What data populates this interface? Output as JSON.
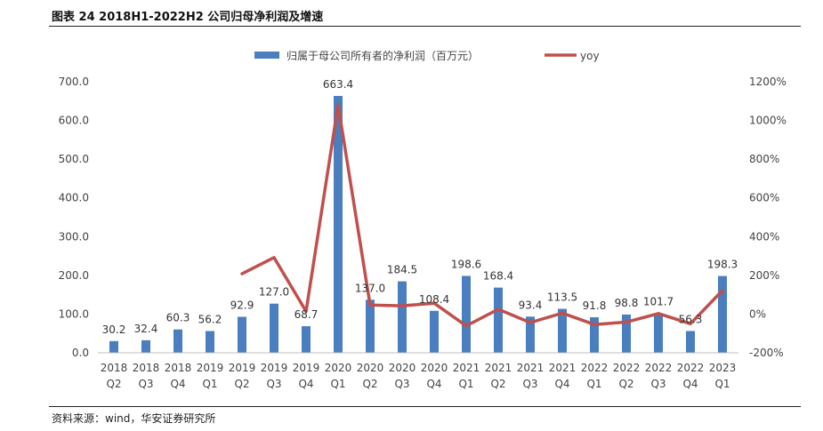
{
  "figure": {
    "title": "图表 24 2018H1-2022H2 公司归母净利润及增速",
    "source": "资料来源：wind，华安证券研究所"
  },
  "chart_data": {
    "type": "bar+line",
    "title": "图表 24 2018H1-2022H2 公司归母净利润及增速",
    "categories": [
      [
        "2018",
        "Q2"
      ],
      [
        "2018",
        "Q3"
      ],
      [
        "2018",
        "Q4"
      ],
      [
        "2019",
        "Q1"
      ],
      [
        "2019",
        "Q2"
      ],
      [
        "2019",
        "Q3"
      ],
      [
        "2019",
        "Q4"
      ],
      [
        "2020",
        "Q1"
      ],
      [
        "2020",
        "Q2"
      ],
      [
        "2020",
        "Q3"
      ],
      [
        "2020",
        "Q4"
      ],
      [
        "2021",
        "Q1"
      ],
      [
        "2021",
        "Q2"
      ],
      [
        "2021",
        "Q3"
      ],
      [
        "2021",
        "Q4"
      ],
      [
        "2022",
        "Q1"
      ],
      [
        "2022",
        "Q2"
      ],
      [
        "2022",
        "Q3"
      ],
      [
        "2022",
        "Q4"
      ],
      [
        "2023",
        "Q1"
      ]
    ],
    "series": [
      {
        "name": "归属于母公司所有者的净利润（百万元）",
        "type": "bar",
        "axis": "left",
        "color": "#4a7ebf",
        "values": [
          30.2,
          32.4,
          60.3,
          56.2,
          92.9,
          127.0,
          68.7,
          663.4,
          137.0,
          184.5,
          108.4,
          198.6,
          168.4,
          93.4,
          113.5,
          91.8,
          98.8,
          101.7,
          56.3,
          198.3
        ],
        "labels": [
          "30.2",
          "32.4",
          "60.3",
          "56.2",
          "92.9",
          "127.0",
          "68.7",
          "663.4",
          "137.0",
          "184.5",
          "108.4",
          "198.6",
          "168.4",
          "93.4",
          "113.5",
          "91.8",
          "98.8",
          "101.7",
          "56.3",
          "198.3"
        ]
      },
      {
        "name": "yoy",
        "type": "line",
        "axis": "right",
        "color": "#c0504d",
        "values": [
          null,
          null,
          null,
          null,
          208,
          292,
          14,
          1080,
          47,
          43,
          56,
          -61,
          25,
          -44,
          5,
          -54,
          -41,
          3,
          -50,
          122
        ]
      }
    ],
    "y_left": {
      "min": 0,
      "max": 700,
      "ticks": [
        "0.0",
        "100.0",
        "200.0",
        "300.0",
        "400.0",
        "500.0",
        "600.0",
        "700.0"
      ]
    },
    "y_right": {
      "min": -200,
      "max": 1200,
      "ticks": [
        "-200%",
        "0%",
        "200%",
        "400%",
        "600%",
        "800%",
        "1000%",
        "1200%"
      ]
    },
    "legend_position": "top-center",
    "grid": false
  }
}
